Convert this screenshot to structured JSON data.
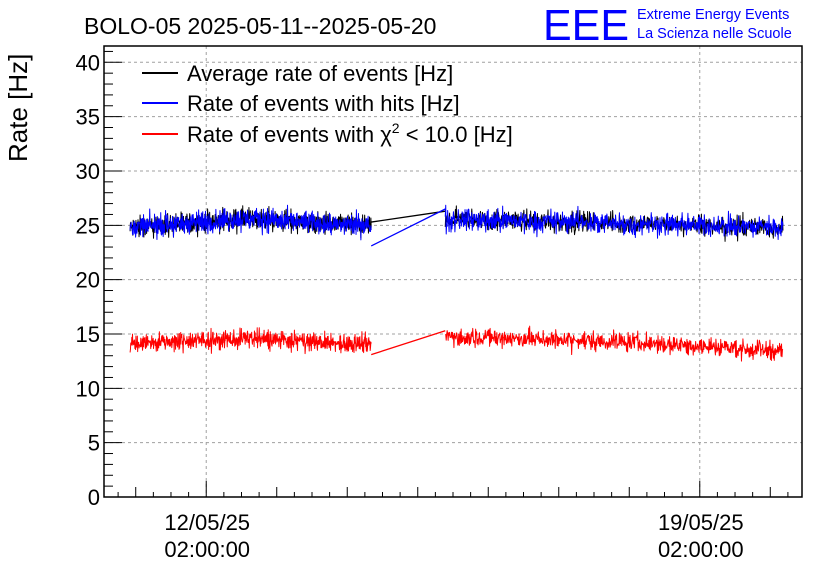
{
  "chart_data": {
    "type": "line",
    "title": "BOLO-05 2025-05-11--2025-05-20",
    "xlabel": "",
    "ylabel": "Rate [Hz]",
    "ylim": [
      0,
      41.5
    ],
    "yticks": [
      0,
      5,
      10,
      15,
      20,
      25,
      30,
      35,
      40
    ],
    "xlim_days": [
      -1.45,
      8.45
    ],
    "xticks": [
      {
        "day": 0,
        "date": "12/05/25",
        "time": "02:00:00"
      },
      {
        "day": 7,
        "date": "19/05/25",
        "time": "02:00:00"
      }
    ],
    "grid": true,
    "legend_position": "top-left",
    "legend": [
      {
        "name": "Average rate of events [Hz]",
        "color": "#000000"
      },
      {
        "name": "Rate of events with hits [Hz]",
        "color": "#0000ff"
      },
      {
        "name_prefix": "Rate of events with ",
        "name_symbol": "χ",
        "name_sup": "2",
        "name_suffix": " < 10.0 [Hz]",
        "color": "#ff0000"
      }
    ],
    "series": [
      {
        "name": "Average rate of events [Hz]",
        "color": "#000000",
        "segments": [
          {
            "x_start": -1.08,
            "x_end": 2.34,
            "mean_start": 24.8,
            "mean_mid": 25.6,
            "mean_end": 24.9,
            "noise": 1.2
          },
          {
            "x_start": 3.39,
            "x_end": 8.18,
            "mean_start": 25.6,
            "mean_mid": 25.2,
            "mean_end": 24.8,
            "noise": 1.2
          }
        ],
        "gap_line": [
          {
            "x": 2.34,
            "y": 25.3
          },
          {
            "x": 3.39,
            "y": 26.3
          }
        ]
      },
      {
        "name": "Rate of events with hits [Hz]",
        "color": "#0000ff",
        "segments": [
          {
            "x_start": -1.08,
            "x_end": 2.34,
            "mean_start": 24.8,
            "mean_mid": 25.6,
            "mean_end": 24.9,
            "noise": 1.3
          },
          {
            "x_start": 3.39,
            "x_end": 8.18,
            "mean_start": 25.6,
            "mean_mid": 25.2,
            "mean_end": 24.8,
            "noise": 1.3
          }
        ],
        "gap_line": [
          {
            "x": 2.34,
            "y": 23.1
          },
          {
            "x": 3.39,
            "y": 26.5
          }
        ]
      },
      {
        "name": "Rate of events with chi2 < 10.0 [Hz]",
        "color": "#ff0000",
        "segments": [
          {
            "x_start": -1.08,
            "x_end": 2.34,
            "mean_start": 14.1,
            "mean_mid": 14.6,
            "mean_end": 14.0,
            "noise": 1.1
          },
          {
            "x_start": 3.39,
            "x_end": 8.18,
            "mean_start": 14.8,
            "mean_mid": 14.3,
            "mean_end": 13.5,
            "noise": 1.1
          }
        ],
        "gap_line": [
          {
            "x": 2.34,
            "y": 13.1
          },
          {
            "x": 3.39,
            "y": 15.3
          }
        ]
      }
    ]
  },
  "logo": {
    "mark": "EEE",
    "line1": "Extreme Energy Events",
    "line2": "La Scienza nelle Scuole",
    "color": "#0000ff"
  }
}
